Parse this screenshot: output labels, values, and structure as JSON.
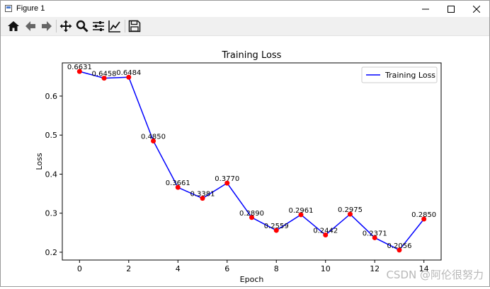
{
  "window": {
    "title": "Figure 1",
    "controls": {
      "minimize": "—",
      "maximize": "☐",
      "close": "✕"
    }
  },
  "toolbar": {
    "items": [
      "home-icon",
      "back-icon",
      "forward-icon",
      "pan-icon",
      "zoom-icon",
      "configure-icon",
      "edit-curve-icon",
      "save-icon"
    ]
  },
  "chart_data": {
    "type": "line",
    "title": "Training Loss",
    "xlabel": "Epoch",
    "ylabel": "Loss",
    "x": [
      0,
      1,
      2,
      3,
      4,
      5,
      6,
      7,
      8,
      9,
      10,
      11,
      12,
      13,
      14
    ],
    "series": [
      {
        "name": "Training Loss",
        "color": "#0000ff",
        "values": [
          0.6631,
          0.6458,
          0.6484,
          0.485,
          0.3661,
          0.3381,
          0.377,
          0.289,
          0.2559,
          0.2961,
          0.2442,
          0.2975,
          0.2371,
          0.2056,
          0.285
        ]
      }
    ],
    "data_labels": [
      "0.6631",
      "0.6458",
      "0.6484",
      "0.4850",
      "0.3661",
      "0.3381",
      "0.3770",
      "0.2890",
      "0.2559",
      "0.2961",
      "0.2442",
      "0.2975",
      "0.2371",
      "0.2056",
      "0.2850"
    ],
    "marker_color": "#ff0000",
    "xlim": [
      -0.7,
      14.7
    ],
    "ylim": [
      0.18,
      0.685
    ],
    "xticks": [
      0,
      2,
      4,
      6,
      8,
      10,
      12,
      14
    ],
    "yticks": [
      0.2,
      0.3,
      0.4,
      0.5,
      0.6
    ],
    "legend": "top-right",
    "grid": false
  },
  "watermark": "CSDN @阿伦很努力"
}
